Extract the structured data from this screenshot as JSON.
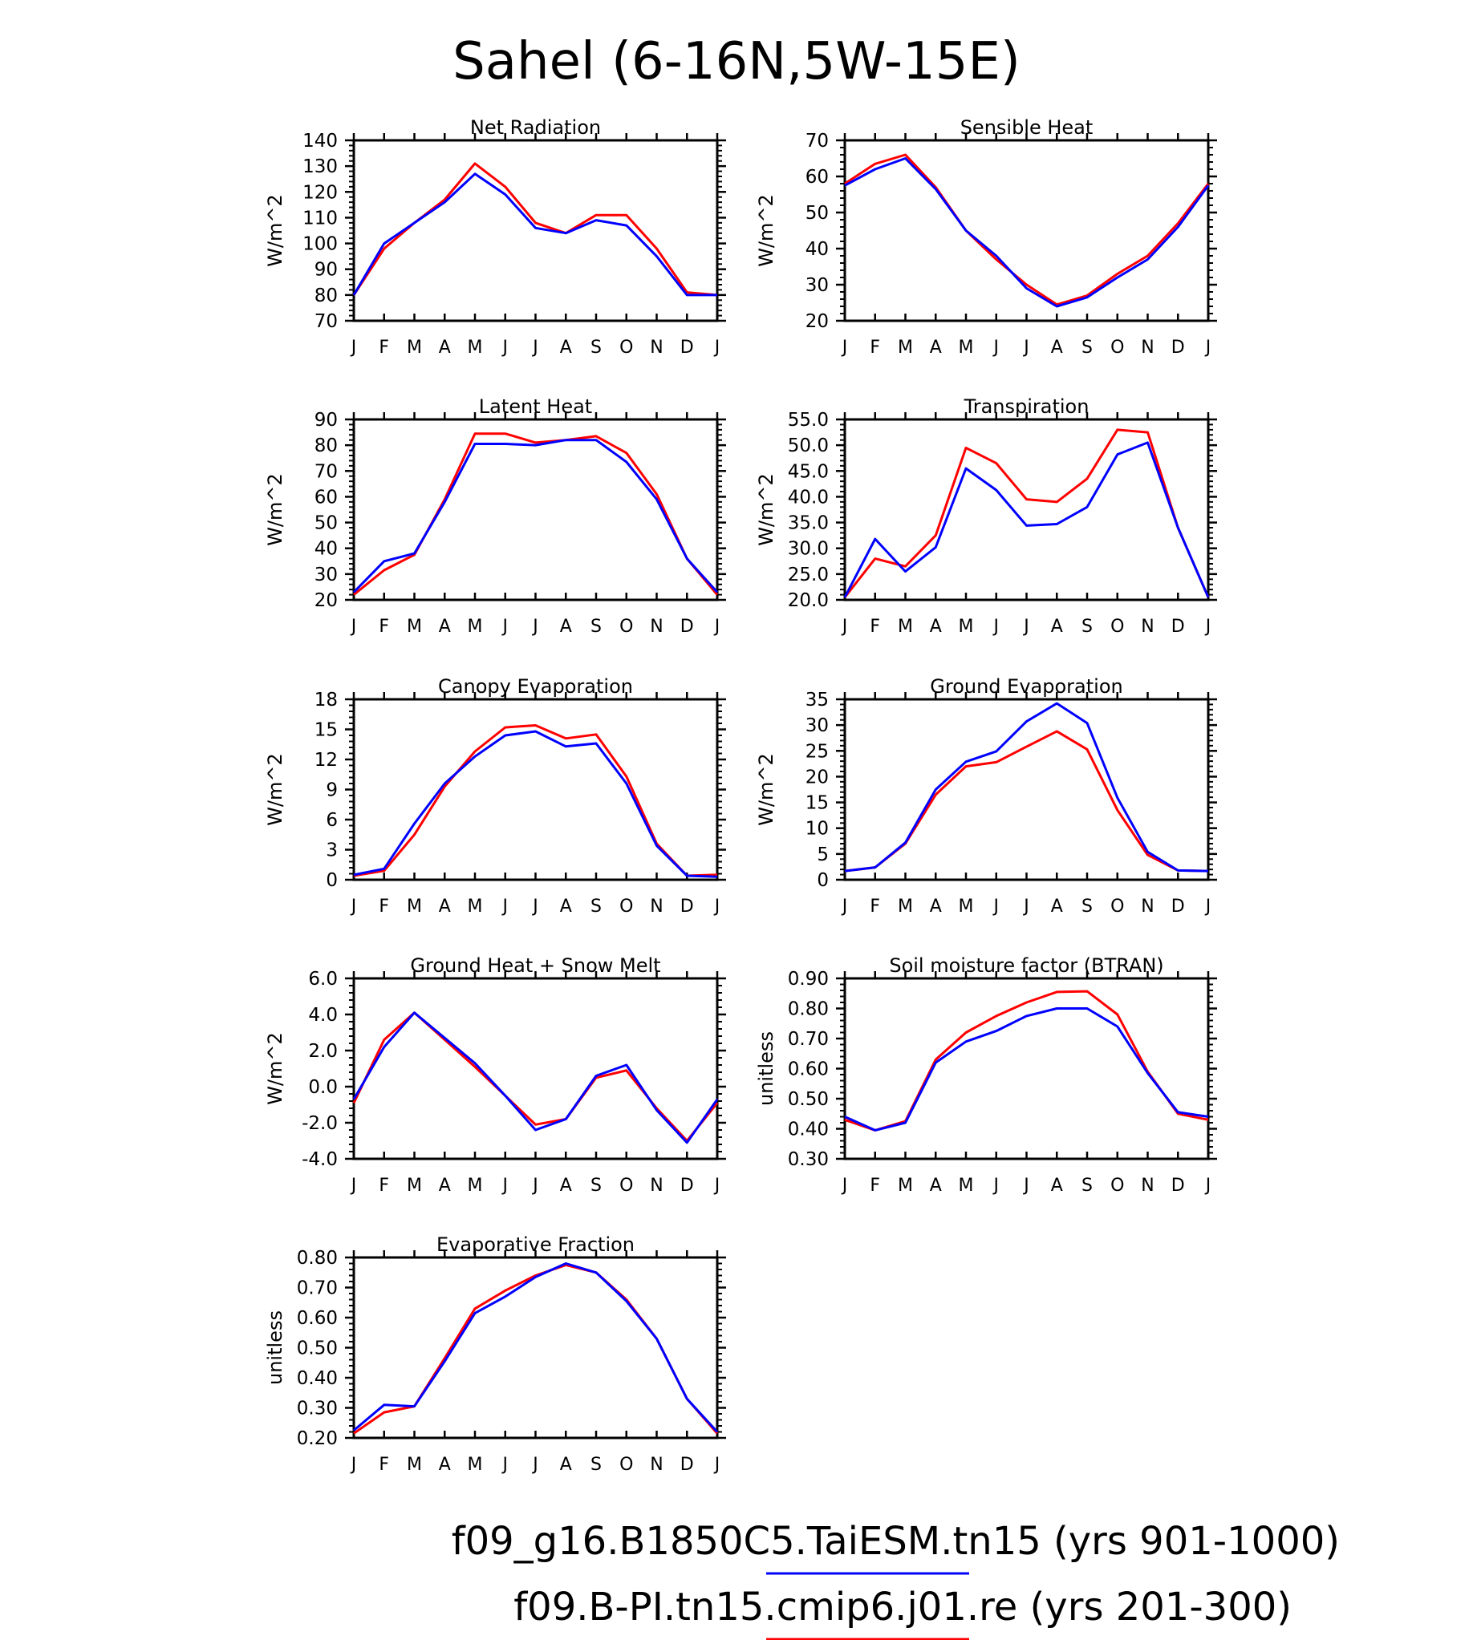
{
  "page_title": "Sahel (6-16N,5W-15E)",
  "month_labels": [
    "J",
    "F",
    "M",
    "A",
    "M",
    "J",
    "J",
    "A",
    "S",
    "O",
    "N",
    "D",
    "J"
  ],
  "series_colors": {
    "case1": "#0000ff",
    "case2": "#ff0000"
  },
  "legend": [
    {
      "text": "f09_g16.B1850C5.TaiESM.tn15 (yrs 901-1000)",
      "color": "#0000ff"
    },
    {
      "text": "f09.B-PI.tn15.cmip6.j01.re (yrs 201-300)",
      "color": "#ff0000"
    }
  ],
  "chart_data": [
    {
      "type": "line",
      "title": "Net Radiation",
      "ylabel": "W/m^2",
      "ylim": [
        70,
        140
      ],
      "yticks": [
        "70",
        "80",
        "90",
        "100",
        "110",
        "120",
        "130",
        "140"
      ],
      "series": [
        {
          "color": "#ff0000",
          "values": [
            80,
            98,
            108,
            117,
            131,
            122,
            108,
            104,
            111,
            111,
            98,
            81,
            80
          ]
        },
        {
          "color": "#0000ff",
          "values": [
            80,
            100,
            108,
            116,
            127,
            119,
            106,
            104,
            109,
            107,
            95,
            80,
            80
          ]
        }
      ]
    },
    {
      "type": "line",
      "title": "Sensible Heat",
      "ylabel": "W/m^2",
      "ylim": [
        20,
        70
      ],
      "yticks": [
        "20",
        "30",
        "40",
        "50",
        "60",
        "70"
      ],
      "series": [
        {
          "color": "#ff0000",
          "values": [
            58,
            63.5,
            66,
            57,
            45,
            37,
            30,
            24.5,
            27,
            33,
            38,
            47,
            58
          ]
        },
        {
          "color": "#0000ff",
          "values": [
            57.5,
            62,
            65,
            56.5,
            45,
            38,
            29,
            24,
            26.5,
            32,
            37,
            46,
            57.5
          ]
        }
      ]
    },
    {
      "type": "line",
      "title": "Latent Heat",
      "ylabel": "W/m^2",
      "ylim": [
        20,
        90
      ],
      "yticks": [
        "20",
        "30",
        "40",
        "50",
        "60",
        "70",
        "80",
        "90"
      ],
      "series": [
        {
          "color": "#ff0000",
          "values": [
            22,
            31.5,
            37.5,
            59,
            84.5,
            84.5,
            81,
            82,
            83.5,
            77,
            61,
            36,
            22
          ]
        },
        {
          "color": "#0000ff",
          "values": [
            23,
            35,
            38,
            58,
            80.5,
            80.5,
            80,
            82,
            82,
            73.5,
            59,
            36,
            23
          ]
        }
      ]
    },
    {
      "type": "line",
      "title": "Transpiration",
      "ylabel": "W/m^2",
      "ylim": [
        20,
        55
      ],
      "yticks": [
        "20.0",
        "25.0",
        "30.0",
        "35.0",
        "40.0",
        "45.0",
        "50.0",
        "55.0"
      ],
      "series": [
        {
          "color": "#ff0000",
          "values": [
            20.5,
            28,
            26.5,
            32.5,
            49.5,
            46.5,
            39.5,
            39,
            43.5,
            53,
            52.5,
            34,
            20.5
          ]
        },
        {
          "color": "#0000ff",
          "values": [
            20.5,
            31.8,
            25.5,
            30.2,
            45.5,
            41.3,
            34.4,
            34.7,
            38,
            48.2,
            50.5,
            34,
            20.5
          ]
        }
      ]
    },
    {
      "type": "line",
      "title": "Canopy Evaporation",
      "ylabel": "W/m^2",
      "ylim": [
        0,
        18
      ],
      "yticks": [
        "0",
        "3",
        "6",
        "9",
        "12",
        "15",
        "18"
      ],
      "series": [
        {
          "color": "#ff0000",
          "values": [
            0.4,
            0.9,
            4.5,
            9.3,
            12.8,
            15.2,
            15.4,
            14.1,
            14.5,
            10.3,
            3.6,
            0.4,
            0.5
          ]
        },
        {
          "color": "#0000ff",
          "values": [
            0.5,
            1.1,
            5.6,
            9.6,
            12.3,
            14.4,
            14.8,
            13.3,
            13.6,
            9.6,
            3.4,
            0.4,
            0.3
          ]
        }
      ]
    },
    {
      "type": "line",
      "title": "Ground Evaporation",
      "ylabel": "W/m^2",
      "ylim": [
        0,
        35
      ],
      "yticks": [
        "0",
        "5",
        "10",
        "15",
        "20",
        "25",
        "30",
        "35"
      ],
      "series": [
        {
          "color": "#ff0000",
          "values": [
            1.7,
            2.4,
            7,
            16.5,
            22,
            22.8,
            25.8,
            28.8,
            25.3,
            13.5,
            4.8,
            1.8,
            1.7
          ]
        },
        {
          "color": "#0000ff",
          "values": [
            1.7,
            2.4,
            7.2,
            17.5,
            22.9,
            24.9,
            30.7,
            34.2,
            30.4,
            15.9,
            5.4,
            1.8,
            1.7
          ]
        }
      ]
    },
    {
      "type": "line",
      "title": "Ground Heat + Snow Melt",
      "ylabel": "W/m^2",
      "ylim": [
        -4,
        6
      ],
      "yticks": [
        "-4.0",
        "-2.0",
        "0.0",
        "2.0",
        "4.0",
        "6.0"
      ],
      "series": [
        {
          "color": "#ff0000",
          "values": [
            -0.9,
            2.6,
            4.1,
            2.6,
            1.1,
            -0.5,
            -2.1,
            -1.8,
            0.5,
            0.9,
            -1.2,
            -3.0,
            -0.9
          ]
        },
        {
          "color": "#0000ff",
          "values": [
            -0.7,
            2.2,
            4.1,
            2.7,
            1.3,
            -0.5,
            -2.4,
            -1.8,
            0.6,
            1.2,
            -1.3,
            -3.1,
            -0.7
          ]
        }
      ]
    },
    {
      "type": "line",
      "title": "Soil moisture factor (BTRAN)",
      "ylabel": "unitless",
      "ylim": [
        0.3,
        0.9
      ],
      "yticks": [
        "0.30",
        "0.40",
        "0.50",
        "0.60",
        "0.70",
        "0.80",
        "0.90"
      ],
      "series": [
        {
          "color": "#ff0000",
          "values": [
            0.43,
            0.395,
            0.425,
            0.63,
            0.72,
            0.775,
            0.82,
            0.855,
            0.857,
            0.78,
            0.59,
            0.45,
            0.43
          ]
        },
        {
          "color": "#0000ff",
          "values": [
            0.44,
            0.395,
            0.42,
            0.62,
            0.69,
            0.725,
            0.775,
            0.8,
            0.8,
            0.74,
            0.585,
            0.455,
            0.44
          ]
        }
      ]
    },
    {
      "type": "line",
      "title": "Evaporative Fraction",
      "ylabel": "unitless",
      "ylim": [
        0.2,
        0.8
      ],
      "yticks": [
        "0.20",
        "0.30",
        "0.40",
        "0.50",
        "0.60",
        "0.70",
        "0.80"
      ],
      "series": [
        {
          "color": "#ff0000",
          "values": [
            0.215,
            0.285,
            0.305,
            0.465,
            0.63,
            0.69,
            0.74,
            0.775,
            0.75,
            0.66,
            0.53,
            0.33,
            0.215
          ]
        },
        {
          "color": "#0000ff",
          "values": [
            0.225,
            0.31,
            0.305,
            0.455,
            0.615,
            0.67,
            0.735,
            0.78,
            0.75,
            0.655,
            0.53,
            0.33,
            0.22
          ]
        }
      ]
    }
  ]
}
